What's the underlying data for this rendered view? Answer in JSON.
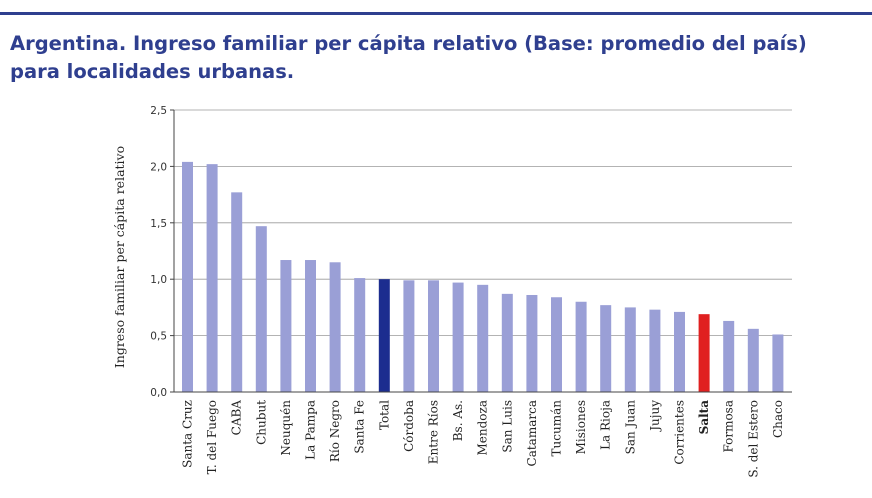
{
  "title_line1": "Argentina. Ingreso familiar per cápita relativo (Base: promedio del país)",
  "title_line2": "para localidades urbanas.",
  "colors": {
    "title": "#2f3f8f",
    "bar": "#9a9fd6",
    "total": "#1c2d8f",
    "salta": "#e02020"
  },
  "chart_data": {
    "type": "bar",
    "title": "Argentina. Ingreso familiar per cápita relativo (Base: promedio del país) para localidades urbanas.",
    "ylabel": "Ingreso familiar per cápita relativo",
    "xlabel": "",
    "ylim": [
      0,
      2.5
    ],
    "yticks": [
      "0,0",
      "0,5",
      "1,0",
      "1,5",
      "2,0",
      "2,5"
    ],
    "grid": true,
    "categories": [
      "Santa Cruz",
      "T. del Fuego",
      "CABA",
      "Chubut",
      "Neuquén",
      "La Pampa",
      "Río Negro",
      "Santa Fe",
      "Total",
      "Córdoba",
      "Entre Ríos",
      "Bs. As.",
      "Mendoza",
      "San Luis",
      "Catamarca",
      "Tucumán",
      "Misiones",
      "La Rioja",
      "San Juan",
      "Jujuy",
      "Corrientes",
      "Salta",
      "Formosa",
      "S. del Estero",
      "Chaco"
    ],
    "values": [
      2.04,
      2.02,
      1.77,
      1.47,
      1.17,
      1.17,
      1.15,
      1.01,
      1.0,
      0.99,
      0.99,
      0.97,
      0.95,
      0.87,
      0.86,
      0.84,
      0.8,
      0.77,
      0.75,
      0.73,
      0.71,
      0.69,
      0.63,
      0.56,
      0.51
    ],
    "highlight": {
      "Total": "total",
      "Salta": "salta"
    },
    "bold_categories": [
      "Salta"
    ]
  }
}
